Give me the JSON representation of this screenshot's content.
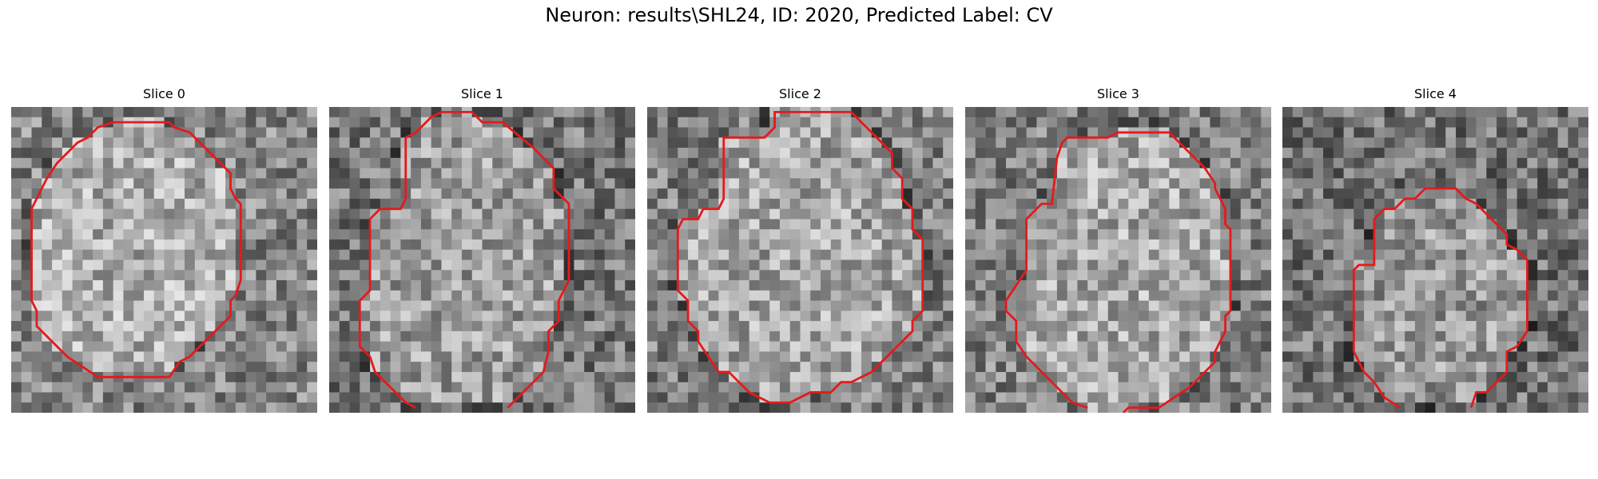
{
  "figure": {
    "title": "Neuron: results\\SHL24, ID: 2020, Predicted Label: CV",
    "contour_color": "#e41a1c",
    "panels": [
      {
        "title": "Slice 0",
        "seed": 11,
        "brightness": 0.58,
        "contour": [
          [
            10.5,
            1.5
          ],
          [
            15.5,
            1.5
          ],
          [
            16,
            2
          ],
          [
            17.5,
            2.5
          ],
          [
            19,
            4
          ],
          [
            20,
            5
          ],
          [
            21.5,
            6.5
          ],
          [
            21.5,
            8
          ],
          [
            22,
            9
          ],
          [
            22.5,
            9.5
          ],
          [
            22.5,
            17
          ],
          [
            22,
            18.5
          ],
          [
            21.5,
            19
          ],
          [
            21.5,
            20.5
          ],
          [
            20,
            22
          ],
          [
            19,
            23
          ],
          [
            18,
            24
          ],
          [
            17.5,
            24.5
          ],
          [
            16.5,
            25
          ],
          [
            15.5,
            26.5
          ],
          [
            8.5,
            26.5
          ],
          [
            7,
            25.5
          ],
          [
            5.5,
            24.5
          ],
          [
            4.5,
            23.5
          ],
          [
            3.5,
            22.5
          ],
          [
            2.5,
            21.5
          ],
          [
            2.5,
            20
          ],
          [
            2,
            19
          ],
          [
            2,
            10
          ],
          [
            2.5,
            9
          ],
          [
            3.5,
            7
          ],
          [
            4.5,
            5.5
          ],
          [
            5.5,
            4.5
          ],
          [
            6.5,
            3.5
          ],
          [
            7.5,
            3
          ],
          [
            8.5,
            2
          ],
          [
            10,
            1.5
          ]
        ],
        "open": false
      },
      {
        "title": "Slice 1",
        "seed": 23,
        "brightness": 0.52,
        "contour": [
          [
            8.5,
            29.5
          ],
          [
            7.5,
            29
          ],
          [
            4.5,
            26
          ],
          [
            4,
            24.5
          ],
          [
            3,
            23.5
          ],
          [
            3,
            19
          ],
          [
            4,
            18
          ],
          [
            4,
            11
          ],
          [
            5,
            10
          ],
          [
            7,
            10
          ],
          [
            7.5,
            9
          ],
          [
            7.5,
            3
          ],
          [
            8.5,
            2.5
          ],
          [
            10,
            1
          ],
          [
            11,
            0.5
          ],
          [
            14,
            0.5
          ],
          [
            15,
            1.5
          ],
          [
            17,
            1.5
          ],
          [
            20,
            4
          ],
          [
            22,
            6
          ],
          [
            22,
            8
          ],
          [
            23.5,
            9.5
          ],
          [
            23.5,
            17
          ],
          [
            23,
            18
          ],
          [
            22.5,
            19
          ],
          [
            22.5,
            21
          ],
          [
            21.5,
            22
          ],
          [
            21.5,
            24
          ],
          [
            21,
            26
          ],
          [
            19,
            28
          ],
          [
            17.5,
            29.5
          ]
        ],
        "open": true
      },
      {
        "title": "Slice 2",
        "seed": 37,
        "brightness": 0.55,
        "contour": [
          [
            12.5,
            0.5
          ],
          [
            20,
            0.5
          ],
          [
            22,
            2.5
          ],
          [
            24,
            4.5
          ],
          [
            24,
            6
          ],
          [
            25,
            7
          ],
          [
            25,
            9
          ],
          [
            26,
            10
          ],
          [
            26,
            12
          ],
          [
            27,
            13
          ],
          [
            27,
            20
          ],
          [
            26,
            21
          ],
          [
            26,
            22
          ],
          [
            24,
            24
          ],
          [
            22,
            26
          ],
          [
            20,
            27
          ],
          [
            19,
            27
          ],
          [
            18,
            28
          ],
          [
            16,
            28
          ],
          [
            14,
            29
          ],
          [
            12,
            29
          ],
          [
            10,
            28
          ],
          [
            9,
            27
          ],
          [
            8,
            26
          ],
          [
            7,
            26
          ],
          [
            5,
            23
          ],
          [
            5,
            22
          ],
          [
            4,
            21
          ],
          [
            4,
            19
          ],
          [
            3,
            18
          ],
          [
            3,
            12
          ],
          [
            3.5,
            11
          ],
          [
            5,
            11
          ],
          [
            5.5,
            10
          ],
          [
            7,
            10
          ],
          [
            7.5,
            9
          ],
          [
            7.5,
            3
          ],
          [
            11.5,
            3
          ],
          [
            12.5,
            2
          ]
        ],
        "open": false
      },
      {
        "title": "Slice 3",
        "seed": 53,
        "brightness": 0.56,
        "contour": [
          [
            12,
            29.5
          ],
          [
            10.5,
            29
          ],
          [
            8,
            26.5
          ],
          [
            7,
            25.5
          ],
          [
            6,
            24.5
          ],
          [
            5,
            23
          ],
          [
            5,
            21
          ],
          [
            4,
            20
          ],
          [
            4,
            19
          ],
          [
            6,
            16
          ],
          [
            6,
            11
          ],
          [
            7,
            10
          ],
          [
            7.5,
            9.5
          ],
          [
            8.5,
            9.5
          ],
          [
            9,
            5
          ],
          [
            9.5,
            3.5
          ],
          [
            10,
            3
          ],
          [
            14,
            3
          ],
          [
            15,
            2.5
          ],
          [
            20,
            2.5
          ],
          [
            21,
            3.5
          ],
          [
            22,
            4.5
          ],
          [
            23.5,
            6
          ],
          [
            24.5,
            7.5
          ],
          [
            24.5,
            8
          ],
          [
            25,
            9
          ],
          [
            25.5,
            10
          ],
          [
            25.5,
            11.5
          ],
          [
            26,
            12
          ],
          [
            26,
            20
          ],
          [
            25.5,
            20.5
          ],
          [
            25.5,
            22
          ],
          [
            25,
            23
          ],
          [
            24.5,
            24
          ],
          [
            24.5,
            25
          ],
          [
            23,
            26.5
          ],
          [
            22,
            27.5
          ],
          [
            20.5,
            28.5
          ],
          [
            19,
            29.5
          ],
          [
            16,
            29.5
          ],
          [
            15.5,
            30
          ]
        ],
        "open": true
      },
      {
        "title": "Slice 4",
        "seed": 71,
        "brightness": 0.5,
        "contour": [
          [
            11.5,
            29.5
          ],
          [
            10,
            28.5
          ],
          [
            9,
            27
          ],
          [
            8,
            26
          ],
          [
            7.5,
            25
          ],
          [
            7,
            24
          ],
          [
            7,
            16
          ],
          [
            7.5,
            15.5
          ],
          [
            9,
            15.5
          ],
          [
            9,
            11
          ],
          [
            10,
            10
          ],
          [
            11,
            10
          ],
          [
            12,
            9
          ],
          [
            13,
            9
          ],
          [
            14,
            8
          ],
          [
            17,
            8
          ],
          [
            18,
            9
          ],
          [
            19,
            9.5
          ],
          [
            21,
            11.5
          ],
          [
            22,
            12.5
          ],
          [
            22,
            13.5
          ],
          [
            23,
            14
          ],
          [
            24,
            15
          ],
          [
            24,
            22
          ],
          [
            23,
            23.5
          ],
          [
            22,
            24
          ],
          [
            22,
            26
          ],
          [
            21,
            27
          ],
          [
            20,
            28
          ],
          [
            19,
            28
          ],
          [
            18.5,
            29.5
          ]
        ],
        "open": true
      }
    ]
  }
}
